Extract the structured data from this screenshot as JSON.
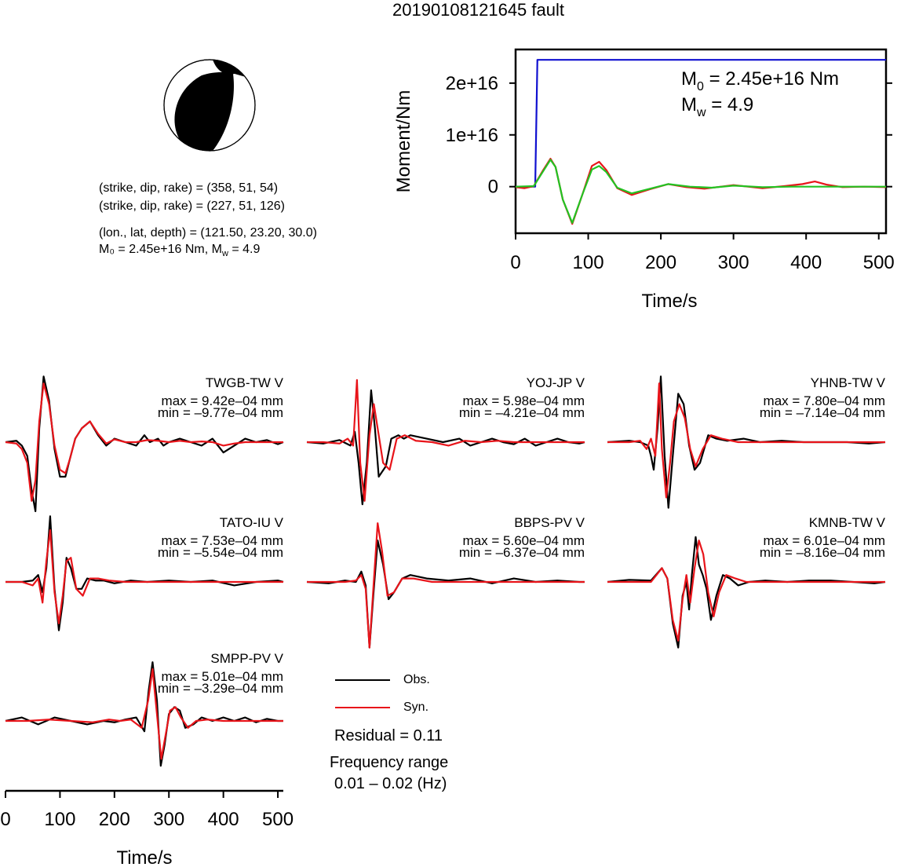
{
  "page": {
    "title": "20190108121645 fault"
  },
  "mechanism": {
    "line1": "(strike, dip, rake) = (358, 51, 54)",
    "line2": "(strike, dip, rake) = (227, 51, 126)",
    "line3": "(lon., lat, depth) = (121.50, 23.20, 30.0)",
    "line4_m0": "M₀ = 2.45e+16 Nm, ",
    "line4_mw": "M",
    "line4_mw_sub": "w",
    "line4_mw_val": " = 4.9"
  },
  "legend": {
    "obs_label": "Obs.",
    "syn_label": "Syn.",
    "residual": "Residual = 0.11",
    "freq_title": "Frequency range",
    "freq_value": "0.01 – 0.02 (Hz)",
    "obs_color": "#000000",
    "syn_color": "#e8141a"
  },
  "chart_data": [
    {
      "type": "line",
      "title": "",
      "xlabel": "Time/s",
      "ylabel": "Moment/Nm",
      "xlim": [
        0,
        510
      ],
      "ylim": [
        -9000000000000000.0,
        2.65e+16
      ],
      "x_ticks": [
        "0",
        "100",
        "200",
        "300",
        "400",
        "500"
      ],
      "y_ticks": [
        "0",
        "1e+16",
        "2e+16"
      ],
      "annotation": {
        "m0_main": "M",
        "m0_sub": "0",
        "m0_val": " = 2.45e+16 Nm",
        "mw_main": "M",
        "mw_sub": "w",
        "mw_val": " = 4.9"
      },
      "series": [
        {
          "color": "#1010d0",
          "x": [
            0,
            27,
            30,
            510
          ],
          "y": [
            0,
            0,
            2.45e+16,
            2.45e+16
          ]
        },
        {
          "color": "#e8141a",
          "x": [
            0,
            12,
            25,
            38,
            48,
            55,
            65,
            78,
            92,
            105,
            115,
            125,
            140,
            160,
            185,
            210,
            235,
            260,
            300,
            340,
            370,
            395,
            412,
            428,
            450,
            480,
            510
          ],
          "y": [
            -100000000000000.0,
            -300000000000000.0,
            100000000000000.0,
            3200000000000000.0,
            5400000000000000.0,
            3800000000000000.0,
            -2500000000000000.0,
            -7200000000000000.0,
            -1500000000000000.0,
            4000000000000000.0,
            4800000000000000.0,
            3200000000000000.0,
            -300000000000000.0,
            -1600000000000000.0,
            -500000000000000.0,
            500000000000000.0,
            -100000000000000.0,
            -400000000000000.0,
            300000000000000.0,
            -300000000000000.0,
            100000000000000.0,
            500000000000000.0,
            1000000000000000.0,
            400000000000000.0,
            -100000000000000.0,
            0,
            -100000000000000.0
          ]
        },
        {
          "color": "#22c322",
          "x": [
            0,
            25,
            38,
            48,
            55,
            65,
            78,
            92,
            105,
            115,
            125,
            140,
            160,
            185,
            210,
            240,
            270,
            300,
            340,
            380,
            420,
            460,
            510
          ],
          "y": [
            0,
            100000000000000.0,
            3000000000000000.0,
            5200000000000000.0,
            3800000000000000.0,
            -2500000000000000.0,
            -7000000000000000.0,
            -1500000000000000.0,
            3300000000000000.0,
            4000000000000000.0,
            2800000000000000.0,
            -200000000000000.0,
            -1300000000000000.0,
            -400000000000000.0,
            500000000000000.0,
            0,
            -200000000000000.0,
            200000000000000.0,
            -100000000000000.0,
            0,
            0,
            0,
            0
          ]
        }
      ]
    },
    {
      "type": "line",
      "title": "",
      "xlabel": "Time/s",
      "ylabel": "",
      "xlim": [
        0,
        510
      ],
      "x_ticks": [
        "0",
        "100",
        "200",
        "300",
        "400",
        "500"
      ],
      "panels": [
        {
          "station": "TWGB-TW V",
          "max": "max = 9.42e–04 mm",
          "min": "min = –9.77e–04 mm",
          "obs_t": [
            0,
            20,
            30,
            40,
            48,
            55,
            62,
            70,
            80,
            90,
            100,
            110,
            118,
            128,
            140,
            155,
            170,
            185,
            200,
            220,
            240,
            255,
            265,
            280,
            290,
            300,
            320,
            340,
            360,
            380,
            400,
            420,
            440,
            460,
            480,
            500,
            510
          ],
          "obs_v": [
            0,
            0.02,
            -0.05,
            -0.2,
            -0.7,
            -1.0,
            0.2,
            0.95,
            0.6,
            -0.1,
            -0.5,
            -0.5,
            -0.25,
            0.05,
            0.2,
            0.3,
            0.1,
            -0.05,
            0.05,
            0,
            -0.05,
            0.1,
            0,
            0.05,
            -0.05,
            0,
            0.05,
            0,
            -0.05,
            0.05,
            -0.15,
            -0.05,
            0.05,
            0,
            0.03,
            -0.03,
            0
          ],
          "syn_t": [
            0,
            20,
            30,
            40,
            48,
            55,
            62,
            70,
            80,
            90,
            100,
            110,
            118,
            128,
            140,
            155,
            170,
            185,
            200,
            220,
            240,
            260,
            280,
            300,
            320,
            340,
            360,
            380,
            400,
            420,
            440,
            460,
            480,
            500,
            510
          ],
          "syn_v": [
            0,
            -0.02,
            -0.1,
            -0.3,
            -0.85,
            -0.55,
            0.3,
            0.85,
            0.55,
            -0.05,
            -0.4,
            -0.45,
            -0.25,
            0.05,
            0.2,
            0.3,
            0.12,
            -0.02,
            0.04,
            0,
            0,
            0.03,
            0.02,
            0,
            0.02,
            0,
            0.01,
            0,
            -0.05,
            -0.02,
            0,
            0,
            0,
            0,
            0
          ]
        },
        {
          "station": "YOJ-JP V",
          "max": "max = 5.98e–04 mm",
          "min": "min = –4.21e–04 mm",
          "obs_t": [
            0,
            30,
            60,
            80,
            88,
            95,
            102,
            110,
            118,
            125,
            132,
            145,
            155,
            168,
            178,
            190,
            220,
            250,
            280,
            300,
            320,
            340,
            360,
            380,
            400,
            420,
            440,
            460,
            480,
            500,
            510
          ],
          "obs_v": [
            0,
            -0.02,
            0.03,
            -0.05,
            0.15,
            -0.3,
            -0.9,
            -0.3,
            0.75,
            0.2,
            -0.5,
            -0.35,
            0.05,
            0.1,
            0.05,
            0.1,
            0.05,
            0,
            0.05,
            -0.05,
            0,
            0.05,
            0,
            -0.03,
            0.05,
            -0.05,
            0,
            0.05,
            0,
            -0.02,
            0
          ],
          "syn_t": [
            0,
            30,
            60,
            75,
            85,
            92,
            98,
            106,
            115,
            123,
            130,
            140,
            152,
            165,
            180,
            200,
            230,
            260,
            290,
            320,
            350,
            380,
            410,
            440,
            470,
            510
          ],
          "syn_v": [
            0,
            0,
            -0.02,
            0.05,
            -0.05,
            0.9,
            -0.3,
            -0.85,
            0.1,
            0.55,
            0.2,
            -0.3,
            -0.4,
            0.05,
            0.1,
            0.02,
            0,
            -0.05,
            0.02,
            0,
            0.02,
            0,
            0,
            0,
            0,
            0
          ]
        },
        {
          "station": "YHNB-TW V",
          "max": "max = 7.80e–04 mm",
          "min": "min = –7.14e–04 mm",
          "obs_t": [
            0,
            40,
            60,
            75,
            80,
            85,
            92,
            98,
            105,
            112,
            120,
            130,
            140,
            150,
            160,
            170,
            185,
            200,
            220,
            250,
            280,
            320,
            360,
            400,
            440,
            480,
            510
          ],
          "obs_v": [
            0,
            0.02,
            0,
            -0.05,
            -0.2,
            -0.4,
            0.2,
            0.95,
            -0.2,
            -0.95,
            -0.2,
            0.7,
            0.55,
            -0.05,
            -0.4,
            -0.3,
            0.1,
            0.05,
            0.02,
            0.05,
            0,
            0.02,
            0,
            0,
            0,
            -0.02,
            0
          ],
          "syn_t": [
            0,
            40,
            60,
            72,
            80,
            88,
            95,
            100,
            108,
            115,
            122,
            132,
            142,
            152,
            162,
            175,
            190,
            210,
            240,
            280,
            320,
            360,
            400,
            440,
            480,
            510
          ],
          "syn_v": [
            0,
            0,
            0.02,
            -0.1,
            0.05,
            -0.2,
            0.85,
            -0.1,
            -0.8,
            -0.3,
            0.3,
            0.55,
            0.35,
            -0.1,
            -0.35,
            -0.1,
            0.1,
            0.05,
            0,
            0,
            0,
            0,
            0,
            0,
            0,
            0
          ]
        },
        {
          "station": "TATO-IU V",
          "max": "max = 7.53e–04 mm",
          "min": "min = –5.54e–04 mm",
          "obs_t": [
            0,
            30,
            50,
            60,
            68,
            75,
            82,
            90,
            98,
            105,
            112,
            120,
            130,
            140,
            150,
            165,
            180,
            200,
            230,
            260,
            300,
            340,
            380,
            420,
            460,
            500,
            510
          ],
          "obs_v": [
            0,
            0,
            0.02,
            0.1,
            -0.15,
            0.2,
            0.95,
            -0.1,
            -0.7,
            -0.3,
            0.35,
            0.2,
            -0.1,
            -0.1,
            0.05,
            0.02,
            0.02,
            -0.02,
            0.02,
            0,
            0.02,
            0,
            0.02,
            -0.05,
            0,
            0.02,
            0
          ],
          "syn_t": [
            0,
            30,
            50,
            60,
            68,
            75,
            82,
            90,
            98,
            105,
            112,
            120,
            130,
            142,
            155,
            170,
            190,
            220,
            260,
            300,
            340,
            380,
            420,
            460,
            510
          ],
          "syn_v": [
            0,
            0,
            -0.05,
            0.05,
            -0.3,
            0.3,
            0.75,
            -0.15,
            -0.6,
            -0.2,
            0.3,
            0.35,
            -0.1,
            -0.2,
            0.05,
            0.05,
            0.02,
            0,
            0,
            0,
            0,
            0,
            0,
            0,
            0
          ]
        },
        {
          "station": "BBPS-PV V",
          "max": "max = 5.60e–04 mm",
          "min": "min = –6.37e–04 mm",
          "obs_t": [
            0,
            40,
            70,
            90,
            100,
            108,
            115,
            122,
            130,
            140,
            150,
            160,
            175,
            190,
            220,
            260,
            300,
            340,
            380,
            420,
            460,
            500,
            510
          ],
          "obs_v": [
            0,
            -0.02,
            0.02,
            0,
            0.15,
            -0.05,
            -0.95,
            -0.2,
            0.6,
            0.25,
            -0.25,
            -0.15,
            0.05,
            0.1,
            0.05,
            0.02,
            0.05,
            -0.02,
            0.05,
            0,
            0.02,
            0,
            0
          ],
          "syn_t": [
            0,
            40,
            70,
            90,
            100,
            108,
            115,
            122,
            130,
            138,
            148,
            160,
            175,
            195,
            230,
            270,
            320,
            370,
            420,
            470,
            510
          ],
          "syn_v": [
            0,
            0,
            0,
            0.02,
            0.1,
            -0.1,
            -0.95,
            -0.1,
            0.85,
            0.45,
            -0.2,
            -0.15,
            0.05,
            0.05,
            0,
            0,
            0,
            0,
            0,
            0,
            0
          ]
        },
        {
          "station": "KMNB-TW V",
          "max": "max = 6.01e–04 mm",
          "min": "min = –8.16e–04 mm",
          "obs_t": [
            0,
            40,
            80,
            100,
            110,
            120,
            130,
            138,
            145,
            150,
            155,
            162,
            168,
            175,
            182,
            190,
            200,
            212,
            225,
            240,
            260,
            290,
            330,
            370,
            410,
            450,
            490,
            510
          ],
          "obs_v": [
            0,
            0.03,
            0.02,
            0.2,
            0.05,
            -0.6,
            -0.95,
            -0.2,
            0,
            -0.4,
            0.1,
            0.65,
            0.25,
            0.1,
            -0.1,
            -0.55,
            -0.2,
            0.1,
            0.05,
            -0.05,
            0,
            0.02,
            0,
            0.02,
            0.02,
            0,
            -0.02,
            0
          ],
          "syn_t": [
            0,
            40,
            80,
            100,
            110,
            120,
            130,
            138,
            145,
            152,
            160,
            168,
            176,
            185,
            195,
            205,
            218,
            235,
            255,
            290,
            330,
            370,
            410,
            450,
            490,
            510
          ],
          "syn_v": [
            0,
            0,
            0,
            0.2,
            0.05,
            -0.55,
            -0.85,
            -0.25,
            0.1,
            -0.3,
            0.2,
            0.6,
            0.4,
            -0.15,
            -0.5,
            -0.15,
            0.1,
            0.05,
            0,
            0,
            0,
            0,
            0,
            0,
            0,
            0
          ]
        },
        {
          "station": "SMPP-PV V",
          "max": "max = 5.01e–04 mm",
          "min": "min = –3.29e–04 mm",
          "obs_t": [
            0,
            30,
            60,
            90,
            120,
            150,
            180,
            200,
            220,
            240,
            255,
            263,
            270,
            278,
            285,
            292,
            300,
            310,
            320,
            330,
            345,
            360,
            380,
            400,
            420,
            440,
            460,
            480,
            500,
            510
          ],
          "obs_v": [
            0,
            0.05,
            -0.05,
            0.05,
            0,
            -0.05,
            0,
            -0.02,
            0.02,
            0.05,
            -0.15,
            0.45,
            0.85,
            0.3,
            -0.65,
            -0.35,
            0.1,
            0.2,
            0.15,
            -0.1,
            -0.05,
            0.05,
            0,
            0.05,
            0,
            0.05,
            -0.02,
            0.03,
            0,
            0
          ],
          "syn_t": [
            0,
            40,
            80,
            120,
            160,
            190,
            210,
            230,
            250,
            262,
            270,
            278,
            286,
            294,
            302,
            312,
            322,
            335,
            350,
            370,
            400,
            440,
            480,
            510
          ],
          "syn_v": [
            0,
            0,
            0.02,
            0,
            -0.02,
            0.02,
            0,
            0.02,
            -0.1,
            0.3,
            0.75,
            0.1,
            -0.55,
            -0.2,
            0.15,
            0.2,
            0.05,
            -0.1,
            0,
            0.02,
            0,
            0,
            0,
            0
          ]
        }
      ]
    }
  ]
}
